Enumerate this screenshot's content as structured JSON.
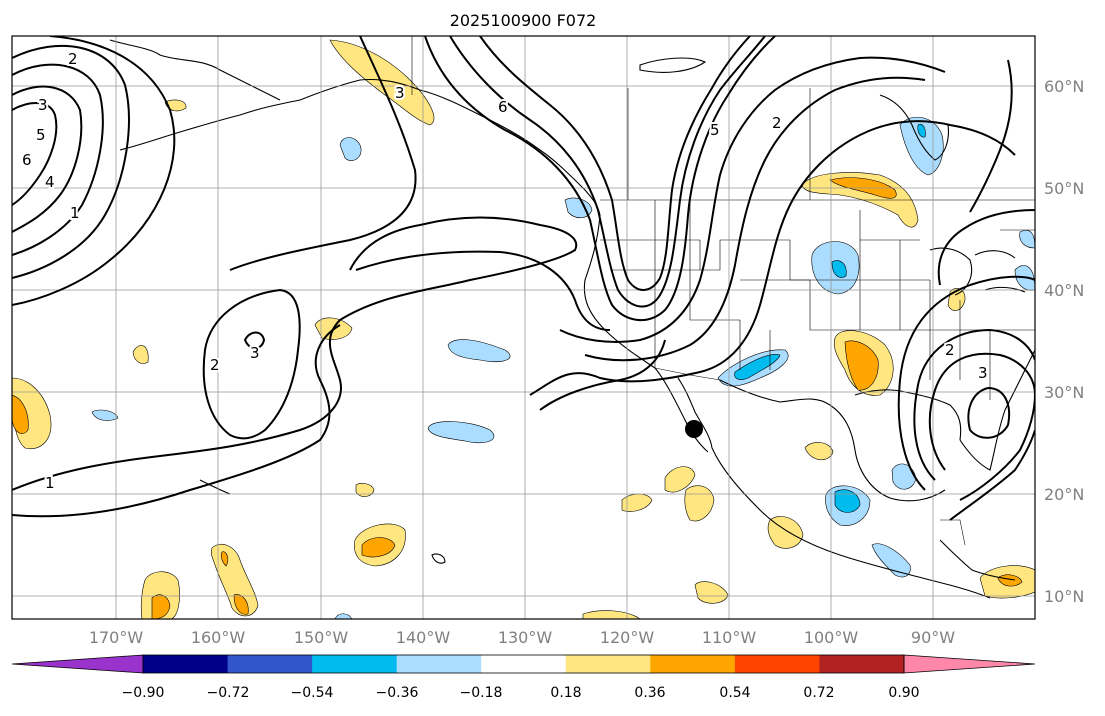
{
  "title": "2025100900 F072",
  "lon_labels": [
    "170°W",
    "160°W",
    "150°W",
    "140°W",
    "130°W",
    "120°W",
    "110°W",
    "100°W",
    "90°W"
  ],
  "lat_labels": [
    "60°N",
    "50°N",
    "40°N",
    "30°N",
    "20°N",
    "10°N"
  ],
  "contour_labels": [
    "2",
    "3",
    "5",
    "6",
    "4",
    "1",
    "6",
    "5",
    "2",
    "3",
    "3",
    "2",
    "1",
    "2",
    "3"
  ],
  "colorbar": {
    "tick_labels": [
      "−0.90",
      "−0.72",
      "−0.54",
      "−0.36",
      "−0.18",
      "0.18",
      "0.36",
      "0.54",
      "0.72",
      "0.90"
    ],
    "colors": [
      "#9933cc",
      "#000088",
      "#3355cc",
      "#00bbee",
      "#aaddff",
      "#ffffff",
      "#ffe680",
      "#ffa500",
      "#ff4400",
      "#b22222",
      "#ff88aa"
    ]
  },
  "colors": {
    "pos_light": "#ffe680",
    "pos_mid": "#ffa500",
    "neg_light": "#aaddff",
    "neg_mid": "#00bbee",
    "grid": "#999999",
    "axis_label": "#808080"
  }
}
